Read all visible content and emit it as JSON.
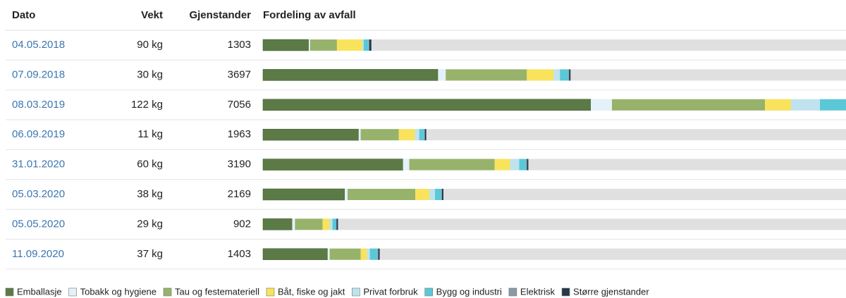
{
  "table": {
    "columns": [
      "Dato",
      "Vekt",
      "Gjenstander",
      "Fordeling av avfall"
    ],
    "rows": [
      {
        "dato": "04.05.2018",
        "vekt": "90 kg",
        "gjenstander": 1303,
        "fordeling": [
          550,
          17,
          322,
          305,
          17,
          59,
          8,
          25
        ]
      },
      {
        "dato": "07.09.2018",
        "vekt": "30 kg",
        "gjenstander": 3697,
        "fordeling": [
          2104,
          93,
          975,
          322,
          76,
          102,
          8,
          17
        ]
      },
      {
        "dato": "08.03.2019",
        "vekt": "122 kg",
        "gjenstander": 7056,
        "fordeling": [
          3941,
          254,
          1839,
          314,
          347,
          330,
          10,
          21
        ]
      },
      {
        "dato": "06.09.2019",
        "vekt": "11 kg",
        "gjenstander": 1963,
        "fordeling": [
          1150,
          25,
          458,
          195,
          51,
          59,
          8,
          17
        ]
      },
      {
        "dato": "31.01.2020",
        "vekt": "60 kg",
        "gjenstander": 3190,
        "fordeling": [
          1683,
          76,
          1025,
          186,
          110,
          85,
          8,
          17
        ]
      },
      {
        "dato": "05.03.2020",
        "vekt": "38 kg",
        "gjenstander": 2169,
        "fordeling": [
          983,
          34,
          814,
          169,
          68,
          76,
          8,
          17
        ]
      },
      {
        "dato": "05.05.2020",
        "vekt": "29 kg",
        "gjenstander": 902,
        "fordeling": [
          351,
          34,
          331,
          85,
          34,
          42,
          8,
          17
        ]
      },
      {
        "dato": "11.09.2020",
        "vekt": "37 kg",
        "gjenstander": 1403,
        "fordeling": [
          777,
          25,
          373,
          76,
          34,
          93,
          8,
          17
        ]
      }
    ]
  },
  "legend": [
    {
      "name": "Emballasje",
      "color": "#5b7a46"
    },
    {
      "name": "Tobakk og hygiene",
      "color": "#e4f1f8"
    },
    {
      "name": "Tau og festemateriell",
      "color": "#97b36b"
    },
    {
      "name": "Båt, fiske og jakt",
      "color": "#f9e35c"
    },
    {
      "name": "Privat forbruk",
      "color": "#bfe3ee"
    },
    {
      "name": "Bygg og industri",
      "color": "#5bc8d8"
    },
    {
      "name": "Elektrisk",
      "color": "#8a9aa5"
    },
    {
      "name": "Større gjenstander",
      "color": "#24394a"
    }
  ]
}
